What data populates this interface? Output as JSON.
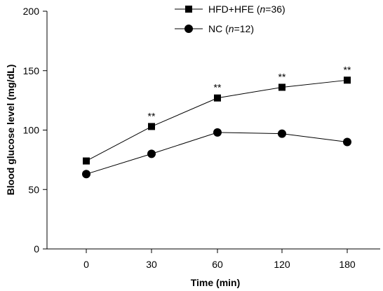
{
  "chart_data": {
    "type": "line",
    "xlabel": "Time (min)",
    "ylabel": "Blood glucose level (mg/dL)",
    "categories": [
      "0",
      "30",
      "60",
      "120",
      "180"
    ],
    "ylim": [
      0,
      200
    ],
    "yticks": [
      0,
      50,
      100,
      150,
      200
    ],
    "grid": false,
    "legend_position": "top-right",
    "series": [
      {
        "name_parts": [
          "HFD+HFE (",
          "n",
          "=36)"
        ],
        "marker": "square",
        "values": [
          74,
          103,
          127,
          136,
          142
        ],
        "annotations": [
          "",
          "**",
          "**",
          "**",
          "**"
        ]
      },
      {
        "name_parts": [
          "NC (",
          "n",
          "=12)"
        ],
        "marker": "circle",
        "values": [
          63,
          80,
          98,
          97,
          90
        ],
        "annotations": [
          "",
          "",
          "",
          "",
          ""
        ]
      }
    ]
  }
}
